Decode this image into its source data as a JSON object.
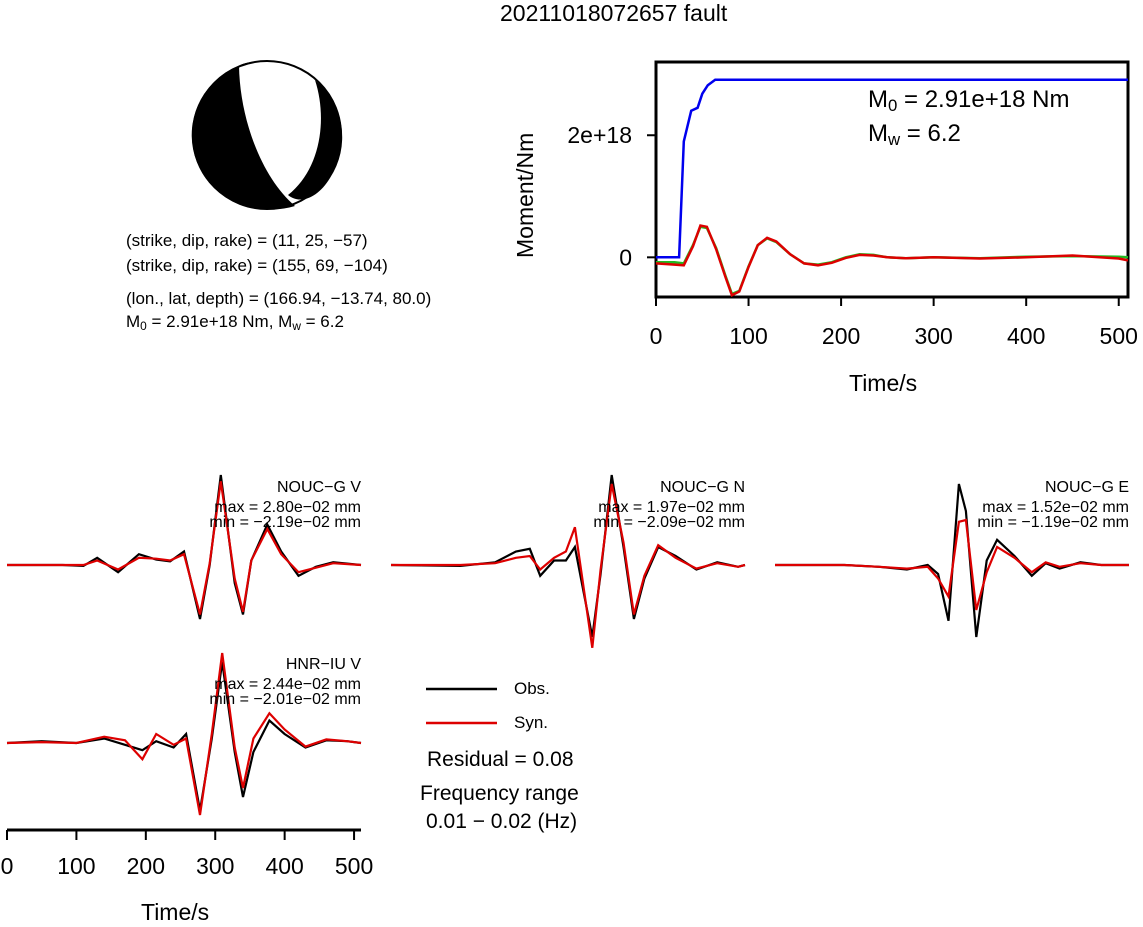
{
  "title": "20211018072657 fault",
  "beachball": {
    "plane1": "(strike, dip, rake) = (11, 25, −57)",
    "plane2": "(strike, dip, rake) = (155, 69, −104)",
    "location": "(lon., lat, depth) = (166.94, −13.74, 80.0)",
    "m0_prefix": "M",
    "m0_sub": "0",
    "m0_mid": " = 2.91e+18 Nm, M",
    "mw_sub": "w",
    "mw_suffix": " = 6.2"
  },
  "moment_panel": {
    "m0_label": "M",
    "m0_sub": "0",
    "m0_value": " = 2.91e+18 Nm",
    "mw_label": "M",
    "mw_sub": "w",
    "mw_value": " = 6.2"
  },
  "waveforms": {
    "legend": {
      "obs": "Obs.",
      "syn": "Syn."
    },
    "residual": "Residual = 0.08",
    "freq_title": "Frequency range",
    "freq_value": "0.01 − 0.02 (Hz)",
    "stations": [
      {
        "name": "NOUC−G V",
        "max": "max = 2.80e−02 mm",
        "min": "min = −2.19e−02 mm"
      },
      {
        "name": "NOUC−G N",
        "max": "max = 1.97e−02 mm",
        "min": "min = −2.09e−02 mm"
      },
      {
        "name": "NOUC−G E",
        "max": "max = 1.52e−02 mm",
        "min": "min = −1.19e−02 mm"
      },
      {
        "name": "HNR−IU V",
        "max": "max = 2.44e−02 mm",
        "min": "min = −2.01e−02 mm"
      }
    ]
  },
  "chart_data": [
    {
      "type": "line",
      "title": "",
      "xlabel": "Time/s",
      "ylabel": "Moment/Nm",
      "xlim": [
        0,
        510
      ],
      "ylim": [
        -6.5e+17,
        3.2e+18
      ],
      "xticks": [
        0,
        100,
        200,
        300,
        400,
        500
      ],
      "yticks": [
        0,
        2e+18
      ],
      "ytick_labels": [
        "0",
        "2e+18"
      ],
      "grid": false,
      "series": [
        {
          "color": "#0000ee",
          "x": [
            0,
            25,
            30,
            38,
            45,
            50,
            56,
            64,
            510
          ],
          "y": [
            0,
            0,
            1.9e+18,
            2.4e+18,
            2.45e+18,
            2.68e+18,
            2.82e+18,
            2.91e+18,
            2.91e+18
          ]
        },
        {
          "color": "#22bb22",
          "x": [
            0,
            20,
            30,
            40,
            48,
            55,
            65,
            75,
            82,
            90,
            100,
            110,
            120,
            130,
            145,
            160,
            175,
            190,
            205,
            220,
            235,
            250,
            270,
            300,
            350,
            400,
            450,
            500,
            510
          ],
          "y": [
            -8e+16,
            -8e+16,
            -1e+17,
            2e+17,
            5e+17,
            4.8e+17,
            1.5e+17,
            -3e+17,
            -6e+17,
            -5.5e+17,
            -1.5e+17,
            2e+17,
            3.1e+17,
            2.5e+17,
            5e+16,
            -1e+17,
            -1.2e+17,
            -8e+16,
            0,
            5e+16,
            4e+16,
            0,
            -1.5e+16,
            0,
            -1.5e+16,
            1e+16,
            2e+16,
            1e+16,
            0
          ]
        },
        {
          "color": "#dd0000",
          "x": [
            0,
            20,
            30,
            40,
            48,
            55,
            65,
            75,
            82,
            90,
            100,
            110,
            120,
            130,
            145,
            160,
            175,
            190,
            205,
            220,
            235,
            250,
            270,
            300,
            350,
            400,
            450,
            500,
            510
          ],
          "y": [
            -1e+17,
            -1.2e+17,
            -1.3e+17,
            1.8e+17,
            5.2e+17,
            5e+17,
            1.3e+17,
            -3.2e+17,
            -6.2e+17,
            -5.6e+17,
            -1.6e+17,
            2e+17,
            3.2e+17,
            2.6e+17,
            5e+16,
            -1e+17,
            -1.3e+17,
            -9e+16,
            -1e+16,
            4e+16,
            3e+16,
            0,
            -1.5e+16,
            0,
            -2e+16,
            0,
            3e+16,
            -2e+16,
            -5e+16
          ]
        }
      ]
    },
    {
      "type": "line",
      "title": "",
      "xlabel": "Time/s",
      "ylabel": "",
      "xlim": [
        0,
        510
      ],
      "xticks": [
        0,
        100,
        200,
        300,
        400,
        500
      ],
      "grid": false,
      "units": "normalized amplitude",
      "traces": [
        {
          "station": "NOUC−G V",
          "obs": {
            "x": [
              0,
              80,
              110,
              130,
              160,
              190,
              215,
              235,
              255,
              278,
              292,
              308,
              328,
              340,
              352,
              375,
              395,
              420,
              445,
              470,
              510
            ],
            "y": [
              0,
              0,
              -0.01,
              0.08,
              -0.08,
              0.12,
              0.06,
              0.04,
              0.15,
              -0.6,
              0.0,
              1.0,
              -0.2,
              -0.55,
              0.05,
              0.45,
              0.15,
              -0.12,
              -0.02,
              0.03,
              0
            ]
          },
          "syn": {
            "x": [
              0,
              80,
              110,
              130,
              160,
              190,
              215,
              235,
              255,
              278,
              292,
              308,
              328,
              340,
              352,
              375,
              395,
              420,
              445,
              470,
              510
            ],
            "y": [
              0,
              0,
              0,
              0.05,
              -0.05,
              0.08,
              0.07,
              0.05,
              0.12,
              -0.55,
              0.02,
              0.93,
              -0.15,
              -0.52,
              0.05,
              0.4,
              0.12,
              -0.08,
              -0.03,
              0.02,
              0
            ]
          }
        },
        {
          "station": "NOUC−G N",
          "obs": {
            "x": [
              0,
              100,
              150,
              180,
              200,
              215,
              235,
              252,
              265,
              290,
              302,
              318,
              335,
              350,
              365,
              385,
              410,
              440,
              470,
              500,
              510
            ],
            "y": [
              0,
              -0.01,
              0.03,
              0.15,
              0.18,
              -0.12,
              0.05,
              0.05,
              0.2,
              -0.8,
              -0.1,
              1.0,
              0.2,
              -0.6,
              -0.15,
              0.2,
              0.1,
              -0.05,
              0.03,
              -0.02,
              0
            ]
          },
          "syn": {
            "x": [
              0,
              100,
              150,
              180,
              200,
              215,
              235,
              252,
              265,
              290,
              302,
              318,
              335,
              350,
              365,
              385,
              410,
              440,
              470,
              500,
              510
            ],
            "y": [
              0,
              0,
              0.02,
              0.08,
              0.1,
              -0.05,
              0.08,
              0.15,
              0.42,
              -0.92,
              -0.05,
              0.9,
              0.25,
              -0.55,
              -0.12,
              0.22,
              0.08,
              -0.04,
              0.02,
              -0.02,
              0
            ]
          }
        },
        {
          "station": "NOUC−G E",
          "obs": {
            "x": [
              0,
              100,
              150,
              190,
              220,
              235,
              250,
              265,
              275,
              290,
              305,
              320,
              345,
              370,
              390,
              410,
              440,
              470,
              510
            ],
            "y": [
              0,
              0,
              -0.02,
              -0.05,
              0.0,
              -0.1,
              -0.62,
              0.9,
              0.6,
              -0.8,
              0.05,
              0.28,
              0.1,
              -0.12,
              0.02,
              -0.04,
              0.03,
              0,
              0
            ]
          },
          "syn": {
            "x": [
              0,
              100,
              150,
              190,
              220,
              235,
              250,
              265,
              275,
              290,
              305,
              320,
              345,
              370,
              390,
              410,
              440,
              470,
              510
            ],
            "y": [
              0,
              0,
              -0.02,
              -0.04,
              -0.02,
              -0.15,
              -0.35,
              0.48,
              0.5,
              -0.5,
              -0.08,
              0.2,
              0.08,
              -0.08,
              0.03,
              -0.02,
              0.02,
              0,
              0
            ]
          }
        },
        {
          "station": "HNR−IU V",
          "obs": {
            "x": [
              0,
              50,
              100,
              140,
              170,
              195,
              215,
              240,
              258,
              278,
              295,
              310,
              328,
              340,
              355,
              378,
              400,
              430,
              460,
              490,
              510
            ],
            "y": [
              0,
              0.02,
              0,
              0.05,
              -0.02,
              -0.08,
              0.02,
              -0.05,
              0.1,
              -0.75,
              0.05,
              0.9,
              -0.1,
              -0.6,
              -0.1,
              0.25,
              0.1,
              -0.05,
              0.03,
              0.02,
              0
            ]
          },
          "syn": {
            "x": [
              0,
              50,
              100,
              140,
              170,
              195,
              215,
              240,
              258,
              278,
              295,
              310,
              328,
              340,
              355,
              378,
              400,
              430,
              460,
              490,
              510
            ],
            "y": [
              0,
              0.01,
              0,
              0.07,
              0.03,
              -0.18,
              0.1,
              -0.02,
              0.05,
              -0.8,
              0.1,
              1.0,
              -0.05,
              -0.5,
              0.05,
              0.33,
              0.15,
              -0.04,
              0.04,
              0.02,
              0
            ]
          }
        }
      ]
    }
  ],
  "colors": {
    "obs": "#000000",
    "syn": "#dd0000",
    "moment": "#0000ee",
    "rate_green": "#22bb22",
    "rate_red": "#dd0000"
  }
}
